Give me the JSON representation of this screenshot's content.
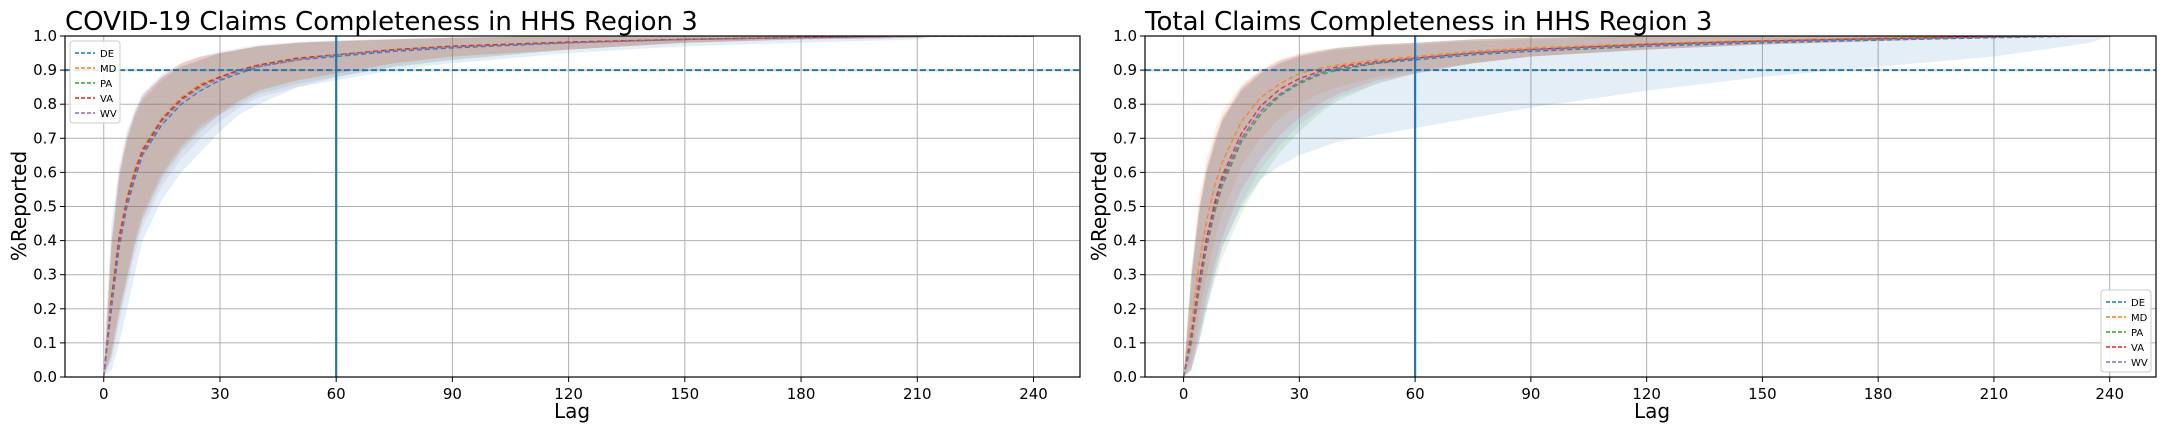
{
  "chart_data": [
    {
      "type": "line",
      "title": "COVID-19 Claims Completeness in HHS Region 3",
      "xlabel": "Lag",
      "ylabel": "%Reported",
      "xlim": [
        -10,
        252
      ],
      "ylim": [
        0,
        1.0
      ],
      "xticks": [
        0,
        30,
        60,
        90,
        120,
        150,
        180,
        210,
        240
      ],
      "yticks": [
        0.0,
        0.1,
        0.2,
        0.3,
        0.4,
        0.5,
        0.6,
        0.7,
        0.8,
        0.9,
        1.0
      ],
      "grid": true,
      "legend_position": "top-left",
      "reference_lines": {
        "horizontal_y": 0.9,
        "vertical_x": 60,
        "color": "#1f77b4"
      },
      "x": [
        0,
        2,
        4,
        6,
        8,
        10,
        15,
        20,
        25,
        30,
        35,
        40,
        50,
        60,
        75,
        90,
        120,
        150,
        180,
        210,
        215,
        240
      ],
      "series": [
        {
          "name": "DE",
          "color": "#1f77b4",
          "values": [
            0.0,
            0.2,
            0.38,
            0.5,
            0.58,
            0.65,
            0.74,
            0.8,
            0.84,
            0.87,
            0.89,
            0.91,
            0.93,
            0.94,
            0.955,
            0.965,
            0.98,
            0.99,
            0.995,
            1.0,
            1.0,
            1.0
          ],
          "band_low": [
            0.0,
            0.02,
            0.1,
            0.2,
            0.3,
            0.4,
            0.52,
            0.6,
            0.66,
            0.72,
            0.77,
            0.8,
            0.85,
            0.87,
            0.9,
            0.92,
            0.95,
            0.97,
            0.98,
            0.99,
            1.0,
            1.0
          ],
          "band_high": [
            0.05,
            0.45,
            0.62,
            0.72,
            0.78,
            0.83,
            0.88,
            0.91,
            0.93,
            0.95,
            0.96,
            0.97,
            0.98,
            0.985,
            0.99,
            0.995,
            1.0,
            1.0,
            1.0,
            1.0,
            1.0,
            1.0
          ]
        },
        {
          "name": "MD",
          "color": "#ff7f0e",
          "values": [
            0.0,
            0.24,
            0.42,
            0.53,
            0.61,
            0.67,
            0.76,
            0.82,
            0.86,
            0.88,
            0.9,
            0.915,
            0.935,
            0.945,
            0.96,
            0.97,
            0.982,
            0.99,
            0.996,
            1.0,
            1.0,
            1.0
          ],
          "band_low": [
            0.0,
            0.08,
            0.2,
            0.3,
            0.4,
            0.48,
            0.6,
            0.68,
            0.74,
            0.78,
            0.81,
            0.84,
            0.87,
            0.89,
            0.92,
            0.94,
            0.96,
            0.98,
            0.99,
            0.995,
            1.0,
            1.0
          ],
          "band_high": [
            0.0,
            0.4,
            0.6,
            0.7,
            0.77,
            0.82,
            0.88,
            0.92,
            0.94,
            0.95,
            0.96,
            0.97,
            0.98,
            0.985,
            0.99,
            0.995,
            1.0,
            1.0,
            1.0,
            1.0,
            1.0,
            1.0
          ]
        },
        {
          "name": "PA",
          "color": "#2ca02c",
          "values": [
            0.0,
            0.22,
            0.4,
            0.52,
            0.6,
            0.66,
            0.755,
            0.815,
            0.855,
            0.88,
            0.9,
            0.915,
            0.935,
            0.945,
            0.96,
            0.97,
            0.982,
            0.99,
            0.996,
            1.0,
            1.0,
            1.0
          ],
          "band_low": [
            0.0,
            0.06,
            0.18,
            0.28,
            0.38,
            0.46,
            0.58,
            0.66,
            0.72,
            0.77,
            0.8,
            0.83,
            0.86,
            0.88,
            0.91,
            0.93,
            0.96,
            0.98,
            0.99,
            0.995,
            1.0,
            1.0
          ],
          "band_high": [
            0.0,
            0.38,
            0.58,
            0.69,
            0.76,
            0.81,
            0.87,
            0.91,
            0.93,
            0.95,
            0.96,
            0.97,
            0.98,
            0.985,
            0.99,
            0.995,
            1.0,
            1.0,
            1.0,
            1.0,
            1.0,
            1.0
          ]
        },
        {
          "name": "VA",
          "color": "#d62728",
          "values": [
            0.0,
            0.23,
            0.41,
            0.52,
            0.6,
            0.665,
            0.755,
            0.815,
            0.855,
            0.88,
            0.9,
            0.915,
            0.935,
            0.945,
            0.96,
            0.97,
            0.982,
            0.99,
            0.996,
            1.0,
            1.0,
            1.0
          ],
          "band_low": [
            0.0,
            0.07,
            0.19,
            0.29,
            0.39,
            0.47,
            0.59,
            0.67,
            0.73,
            0.77,
            0.81,
            0.84,
            0.87,
            0.89,
            0.92,
            0.94,
            0.96,
            0.98,
            0.99,
            0.995,
            1.0,
            1.0
          ],
          "band_high": [
            0.0,
            0.39,
            0.59,
            0.7,
            0.77,
            0.82,
            0.88,
            0.92,
            0.94,
            0.95,
            0.96,
            0.97,
            0.98,
            0.985,
            0.99,
            0.995,
            1.0,
            1.0,
            1.0,
            1.0,
            1.0,
            1.0
          ]
        },
        {
          "name": "WV",
          "color": "#9467bd",
          "values": [
            0.0,
            0.21,
            0.39,
            0.51,
            0.59,
            0.655,
            0.75,
            0.81,
            0.85,
            0.875,
            0.895,
            0.91,
            0.93,
            0.945,
            0.958,
            0.968,
            0.98,
            0.99,
            0.995,
            1.0,
            1.0,
            1.0
          ],
          "band_low": [
            0.0,
            0.05,
            0.16,
            0.26,
            0.36,
            0.44,
            0.56,
            0.64,
            0.7,
            0.75,
            0.79,
            0.82,
            0.85,
            0.88,
            0.91,
            0.93,
            0.96,
            0.98,
            0.99,
            0.995,
            1.0,
            1.0
          ],
          "band_high": [
            0.0,
            0.4,
            0.6,
            0.71,
            0.78,
            0.83,
            0.89,
            0.92,
            0.94,
            0.955,
            0.965,
            0.975,
            0.982,
            0.988,
            0.992,
            0.996,
            1.0,
            1.0,
            1.0,
            1.0,
            1.0,
            1.0
          ]
        }
      ]
    },
    {
      "type": "line",
      "title": "Total Claims Completeness in HHS Region 3",
      "xlabel": "Lag",
      "ylabel": "%Reported",
      "xlim": [
        -10,
        252
      ],
      "ylim": [
        0,
        1.0
      ],
      "xticks": [
        0,
        30,
        60,
        90,
        120,
        150,
        180,
        210,
        240
      ],
      "yticks": [
        0.0,
        0.1,
        0.2,
        0.3,
        0.4,
        0.5,
        0.6,
        0.7,
        0.8,
        0.9,
        1.0
      ],
      "grid": true,
      "legend_position": "bottom-right",
      "reference_lines": {
        "horizontal_y": 0.9,
        "vertical_x": 60,
        "color": "#1f77b4"
      },
      "x": [
        0,
        2,
        4,
        6,
        8,
        10,
        15,
        20,
        25,
        30,
        35,
        40,
        50,
        60,
        75,
        90,
        120,
        150,
        180,
        210,
        235,
        240
      ],
      "series": [
        {
          "name": "DE",
          "color": "#1f77b4",
          "values": [
            0.0,
            0.12,
            0.27,
            0.4,
            0.5,
            0.58,
            0.7,
            0.78,
            0.83,
            0.865,
            0.89,
            0.905,
            0.92,
            0.93,
            0.945,
            0.955,
            0.97,
            0.98,
            0.988,
            0.995,
            1.0,
            1.0
          ],
          "band_low": [
            0.0,
            0.02,
            0.1,
            0.2,
            0.3,
            0.38,
            0.5,
            0.58,
            0.62,
            0.65,
            0.67,
            0.69,
            0.71,
            0.73,
            0.76,
            0.79,
            0.84,
            0.88,
            0.91,
            0.94,
            0.98,
            1.0
          ],
          "band_high": [
            0.0,
            0.3,
            0.48,
            0.6,
            0.68,
            0.75,
            0.84,
            0.89,
            0.92,
            0.94,
            0.95,
            0.96,
            0.97,
            0.975,
            0.985,
            0.99,
            1.0,
            1.0,
            1.0,
            1.0,
            1.0,
            1.0
          ]
        },
        {
          "name": "MD",
          "color": "#ff7f0e",
          "values": [
            0.0,
            0.15,
            0.33,
            0.46,
            0.56,
            0.63,
            0.75,
            0.82,
            0.86,
            0.89,
            0.905,
            0.915,
            0.93,
            0.94,
            0.955,
            0.965,
            0.978,
            0.987,
            0.994,
            1.0,
            1.0,
            1.0
          ],
          "band_low": [
            0.0,
            0.05,
            0.18,
            0.3,
            0.4,
            0.48,
            0.62,
            0.7,
            0.76,
            0.8,
            0.83,
            0.85,
            0.88,
            0.9,
            0.92,
            0.94,
            0.96,
            0.975,
            0.985,
            0.995,
            1.0,
            1.0
          ],
          "band_high": [
            0.0,
            0.32,
            0.52,
            0.64,
            0.72,
            0.78,
            0.86,
            0.9,
            0.93,
            0.95,
            0.96,
            0.965,
            0.975,
            0.98,
            0.99,
            0.995,
            1.0,
            1.0,
            1.0,
            1.0,
            1.0,
            1.0
          ]
        },
        {
          "name": "PA",
          "color": "#2ca02c",
          "values": [
            0.0,
            0.1,
            0.25,
            0.38,
            0.48,
            0.56,
            0.69,
            0.77,
            0.825,
            0.86,
            0.885,
            0.9,
            0.92,
            0.935,
            0.95,
            0.96,
            0.975,
            0.985,
            0.992,
            0.998,
            1.0,
            1.0
          ],
          "band_low": [
            0.0,
            0.02,
            0.1,
            0.2,
            0.28,
            0.35,
            0.48,
            0.58,
            0.66,
            0.72,
            0.77,
            0.81,
            0.86,
            0.89,
            0.92,
            0.94,
            0.96,
            0.975,
            0.985,
            0.995,
            1.0,
            1.0
          ],
          "band_high": [
            0.0,
            0.28,
            0.48,
            0.6,
            0.68,
            0.75,
            0.84,
            0.89,
            0.92,
            0.94,
            0.955,
            0.965,
            0.975,
            0.98,
            0.99,
            0.995,
            1.0,
            1.0,
            1.0,
            1.0,
            1.0,
            1.0
          ]
        },
        {
          "name": "VA",
          "color": "#d62728",
          "values": [
            0.0,
            0.12,
            0.28,
            0.41,
            0.51,
            0.59,
            0.715,
            0.795,
            0.845,
            0.875,
            0.895,
            0.91,
            0.925,
            0.935,
            0.95,
            0.96,
            0.975,
            0.985,
            0.992,
            0.998,
            1.0,
            1.0
          ],
          "band_low": [
            0.0,
            0.03,
            0.13,
            0.24,
            0.33,
            0.41,
            0.55,
            0.64,
            0.71,
            0.76,
            0.8,
            0.83,
            0.87,
            0.89,
            0.92,
            0.94,
            0.96,
            0.975,
            0.985,
            0.995,
            1.0,
            1.0
          ],
          "band_high": [
            0.0,
            0.3,
            0.5,
            0.62,
            0.7,
            0.76,
            0.85,
            0.9,
            0.93,
            0.945,
            0.955,
            0.965,
            0.975,
            0.98,
            0.99,
            0.995,
            1.0,
            1.0,
            1.0,
            1.0,
            1.0,
            1.0
          ]
        },
        {
          "name": "WV",
          "color": "#9467bd",
          "values": [
            0.0,
            0.11,
            0.26,
            0.39,
            0.49,
            0.57,
            0.7,
            0.78,
            0.83,
            0.865,
            0.89,
            0.905,
            0.922,
            0.935,
            0.95,
            0.96,
            0.974,
            0.984,
            0.991,
            0.997,
            1.0,
            1.0
          ],
          "band_low": [
            0.0,
            0.02,
            0.11,
            0.21,
            0.3,
            0.38,
            0.51,
            0.61,
            0.68,
            0.74,
            0.78,
            0.82,
            0.86,
            0.89,
            0.92,
            0.94,
            0.96,
            0.975,
            0.985,
            0.995,
            1.0,
            1.0
          ],
          "band_high": [
            0.0,
            0.29,
            0.49,
            0.61,
            0.69,
            0.76,
            0.85,
            0.895,
            0.925,
            0.945,
            0.955,
            0.965,
            0.975,
            0.98,
            0.99,
            0.995,
            1.0,
            1.0,
            1.0,
            1.0,
            1.0,
            1.0
          ]
        }
      ]
    }
  ]
}
